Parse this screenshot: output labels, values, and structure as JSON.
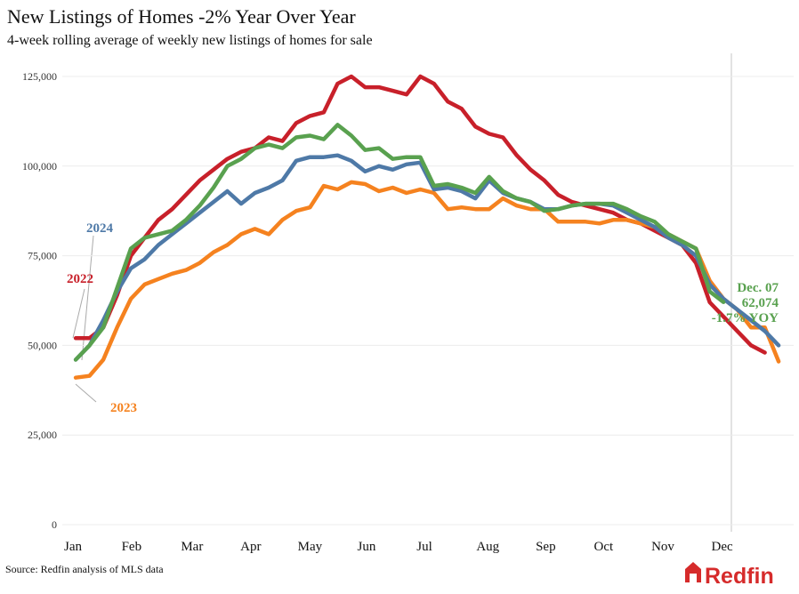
{
  "chart_data": {
    "type": "line",
    "title": "New Listings of Homes -2% Year Over Year",
    "subtitle": "4-week rolling average of weekly new listings of homes for sale",
    "source": "Source: Redfin analysis of MLS data",
    "logo": "Redfin",
    "x": [
      1,
      2,
      3,
      4,
      5,
      6,
      7,
      8,
      9,
      10,
      11,
      12,
      13,
      14,
      15,
      16,
      17,
      18,
      19,
      20,
      21,
      22,
      23,
      24,
      25,
      26,
      27,
      28,
      29,
      30,
      31,
      32,
      33,
      34,
      35,
      36,
      37,
      38,
      39,
      40,
      41,
      42,
      43,
      44,
      45,
      46,
      47,
      48,
      49,
      50,
      51,
      52
    ],
    "xlim": [
      0,
      53
    ],
    "xticks": [
      {
        "value": 0.8,
        "label": "Jan"
      },
      {
        "value": 5.05,
        "label": "Feb"
      },
      {
        "value": 9.44,
        "label": "Mar"
      },
      {
        "value": 13.7,
        "label": "Apr"
      },
      {
        "value": 18.0,
        "label": "May"
      },
      {
        "value": 22.1,
        "label": "Jun"
      },
      {
        "value": 26.3,
        "label": "Jul"
      },
      {
        "value": 30.9,
        "label": "Aug"
      },
      {
        "value": 35.1,
        "label": "Sep"
      },
      {
        "value": 39.3,
        "label": "Oct"
      },
      {
        "value": 43.6,
        "label": "Nov"
      },
      {
        "value": 47.9,
        "label": "Dec"
      }
    ],
    "ylim": [
      0,
      125000
    ],
    "yticks": [
      0,
      {
        "value": 25000,
        "label": "25,000"
      },
      {
        "value": 50000,
        "label": "50,000"
      },
      {
        "value": 75000,
        "label": "75,000"
      },
      {
        "value": 100000,
        "label": "100,000"
      },
      {
        "value": 125000,
        "label": "125,000"
      }
    ],
    "grid": true,
    "series": [
      {
        "name": "2022",
        "color": "#c8202a",
        "values": [
          52000,
          52000,
          55000,
          64000,
          75000,
          80000,
          85000,
          88000,
          92000,
          96000,
          99000,
          102000,
          104000,
          105000,
          108000,
          107000,
          112000,
          114000,
          115000,
          123000,
          125000,
          122000,
          122000,
          121000,
          120000,
          125000,
          123000,
          118000,
          116000,
          111000,
          109000,
          108000,
          103000,
          99000,
          96000,
          92000,
          90000,
          89000,
          88000,
          87000,
          85000,
          84000,
          82000,
          80000,
          78000,
          73000,
          62000,
          58000,
          54000,
          50000,
          48000,
          null
        ]
      },
      {
        "name": "2023",
        "color": "#f5821f",
        "values": [
          41000,
          41500,
          46000,
          55000,
          63000,
          67000,
          68500,
          70000,
          71000,
          73000,
          76000,
          78000,
          81000,
          82500,
          81000,
          85000,
          87500,
          88500,
          94500,
          93500,
          95500,
          95000,
          93000,
          94000,
          92500,
          93500,
          92500,
          88000,
          88500,
          88000,
          88000,
          91000,
          89000,
          88000,
          88000,
          84500,
          84500,
          84500,
          84000,
          85000,
          85000,
          84000,
          83000,
          81000,
          79000,
          77000,
          68000,
          63000,
          60000,
          55000,
          55000,
          45500
        ]
      },
      {
        "name": "2024",
        "color": "#4e79a7",
        "values": [
          46000,
          50000,
          57000,
          65000,
          71500,
          74000,
          78000,
          81000,
          84000,
          87000,
          90000,
          93000,
          89500,
          92500,
          94000,
          96000,
          101500,
          102500,
          102500,
          103000,
          101500,
          98500,
          100000,
          99000,
          100500,
          101000,
          93500,
          94000,
          93000,
          91000,
          96000,
          92500,
          91000,
          90000,
          88000,
          88000,
          89000,
          89500,
          89500,
          89000,
          87000,
          85000,
          83000,
          80000,
          78000,
          75000,
          67000,
          63000,
          60000,
          57000,
          54000,
          50000
        ]
      },
      {
        "color": "#59a14f",
        "values": [
          46000,
          50000,
          55000,
          66000,
          77000,
          80000,
          81000,
          82000,
          85000,
          89000,
          94000,
          100000,
          102000,
          105000,
          106000,
          105000,
          108000,
          108500,
          107500,
          111500,
          108500,
          104500,
          105000,
          102000,
          102500,
          102500,
          94500,
          95000,
          94000,
          92500,
          97000,
          93000,
          91000,
          90000,
          87500,
          88000,
          89000,
          89500,
          89500,
          89500,
          88000,
          86000,
          84500,
          81000,
          79000,
          77000,
          65000,
          62074,
          null,
          null,
          null,
          null
        ]
      }
    ],
    "annotation": [
      "Dec. 07",
      "62,074",
      "-1.7% YOY"
    ]
  }
}
